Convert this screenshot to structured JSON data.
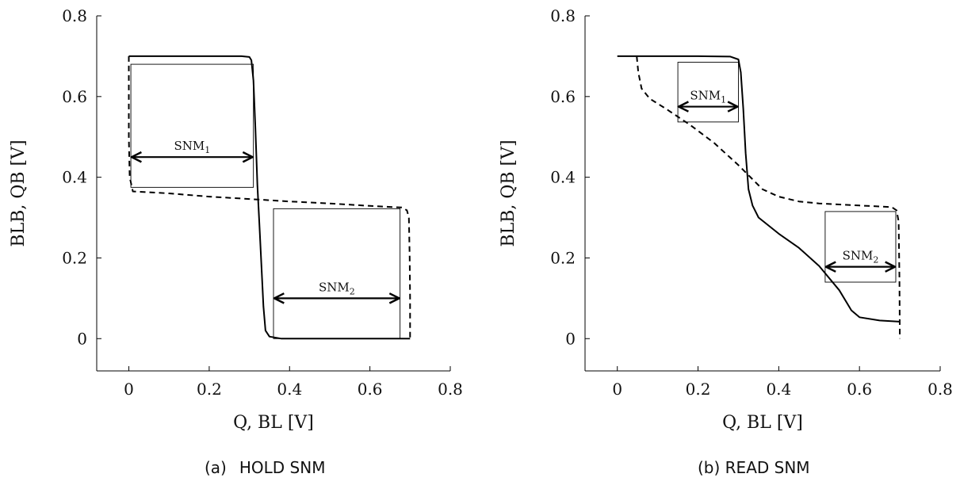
{
  "figure": {
    "caption_a_marker": "(a)",
    "caption_a_text": "HOLD SNM",
    "caption_b": "(b) READ SNM"
  },
  "chart_data": [
    {
      "type": "line",
      "panel": "a",
      "xlabel": "Q, BL [V]",
      "ylabel": "BLB, QB [V]",
      "xlim": [
        -0.08,
        0.8
      ],
      "ylim": [
        -0.08,
        0.8
      ],
      "xticks": [
        0,
        0.2,
        0.4,
        0.6,
        0.8
      ],
      "yticks": [
        0,
        0.2,
        0.4,
        0.6,
        0.8
      ],
      "xtick_labels": [
        "0",
        "0.2",
        "0.4",
        "0.6",
        "0.8"
      ],
      "ytick_labels": [
        "0",
        "0.2",
        "0.4",
        "0.6",
        "0.8"
      ],
      "series": [
        {
          "style": "solid",
          "points": [
            [
              0,
              0.7
            ],
            [
              0.1,
              0.7
            ],
            [
              0.2,
              0.7
            ],
            [
              0.28,
              0.7
            ],
            [
              0.3,
              0.698
            ],
            [
              0.305,
              0.69
            ],
            [
              0.31,
              0.64
            ],
            [
              0.315,
              0.52
            ],
            [
              0.32,
              0.38
            ],
            [
              0.325,
              0.28
            ],
            [
              0.33,
              0.18
            ],
            [
              0.335,
              0.08
            ],
            [
              0.34,
              0.02
            ],
            [
              0.35,
              0.005
            ],
            [
              0.38,
              0.0
            ],
            [
              0.5,
              0.0
            ],
            [
              0.6,
              0.0
            ],
            [
              0.7,
              0.0
            ]
          ]
        },
        {
          "style": "dashed",
          "points": [
            [
              0.0,
              0.7
            ],
            [
              0.0,
              0.6
            ],
            [
              0.0,
              0.5
            ],
            [
              0.002,
              0.4
            ],
            [
              0.01,
              0.365
            ],
            [
              0.1,
              0.36
            ],
            [
              0.2,
              0.352
            ],
            [
              0.3,
              0.346
            ],
            [
              0.4,
              0.34
            ],
            [
              0.5,
              0.335
            ],
            [
              0.6,
              0.329
            ],
            [
              0.68,
              0.325
            ],
            [
              0.692,
              0.318
            ],
            [
              0.697,
              0.3
            ],
            [
              0.699,
              0.2
            ],
            [
              0.7,
              0.1
            ],
            [
              0.7,
              0.0
            ]
          ]
        }
      ],
      "boxes": [
        {
          "label_main": "SNM",
          "label_sub": "1",
          "x": [
            0.005,
            0.31
          ],
          "y": [
            0.375,
            0.68
          ],
          "arrow_y": 0.45
        },
        {
          "label_main": "SNM",
          "label_sub": "2",
          "x": [
            0.36,
            0.675
          ],
          "y": [
            0.0,
            0.322
          ],
          "arrow_y": 0.1
        }
      ]
    },
    {
      "type": "line",
      "panel": "b",
      "xlabel": "Q, BL [V]",
      "ylabel": "BLB, QB [V]",
      "xlim": [
        -0.08,
        0.8
      ],
      "ylim": [
        -0.08,
        0.8
      ],
      "xticks": [
        0,
        0.2,
        0.4,
        0.6,
        0.8
      ],
      "yticks": [
        0,
        0.2,
        0.4,
        0.6,
        0.8
      ],
      "xtick_labels": [
        "0",
        "0.2",
        "0.4",
        "0.6",
        "0.8"
      ],
      "ytick_labels": [
        "0",
        "0.2",
        "0.4",
        "0.6",
        "0.8"
      ],
      "series": [
        {
          "style": "solid",
          "points": [
            [
              0,
              0.7
            ],
            [
              0.1,
              0.7
            ],
            [
              0.2,
              0.7
            ],
            [
              0.28,
              0.699
            ],
            [
              0.3,
              0.692
            ],
            [
              0.306,
              0.66
            ],
            [
              0.312,
              0.57
            ],
            [
              0.318,
              0.46
            ],
            [
              0.325,
              0.37
            ],
            [
              0.335,
              0.33
            ],
            [
              0.35,
              0.3
            ],
            [
              0.4,
              0.26
            ],
            [
              0.45,
              0.225
            ],
            [
              0.5,
              0.18
            ],
            [
              0.55,
              0.12
            ],
            [
              0.58,
              0.07
            ],
            [
              0.6,
              0.053
            ],
            [
              0.65,
              0.045
            ],
            [
              0.7,
              0.042
            ]
          ]
        },
        {
          "style": "dashed",
          "points": [
            [
              0.048,
              0.7
            ],
            [
              0.052,
              0.66
            ],
            [
              0.06,
              0.62
            ],
            [
              0.08,
              0.595
            ],
            [
              0.12,
              0.57
            ],
            [
              0.18,
              0.53
            ],
            [
              0.24,
              0.485
            ],
            [
              0.3,
              0.43
            ],
            [
              0.34,
              0.39
            ],
            [
              0.36,
              0.37
            ],
            [
              0.4,
              0.352
            ],
            [
              0.45,
              0.34
            ],
            [
              0.5,
              0.335
            ],
            [
              0.6,
              0.33
            ],
            [
              0.68,
              0.326
            ],
            [
              0.692,
              0.318
            ],
            [
              0.697,
              0.29
            ],
            [
              0.699,
              0.15
            ],
            [
              0.7,
              0.0
            ]
          ]
        }
      ],
      "boxes": [
        {
          "label_main": "SNM",
          "label_sub": "1",
          "x": [
            0.15,
            0.3
          ],
          "y": [
            0.537,
            0.685
          ],
          "arrow_y": 0.575
        },
        {
          "label_main": "SNM",
          "label_sub": "2",
          "x": [
            0.515,
            0.69
          ],
          "y": [
            0.14,
            0.315
          ],
          "arrow_y": 0.178
        }
      ]
    }
  ]
}
